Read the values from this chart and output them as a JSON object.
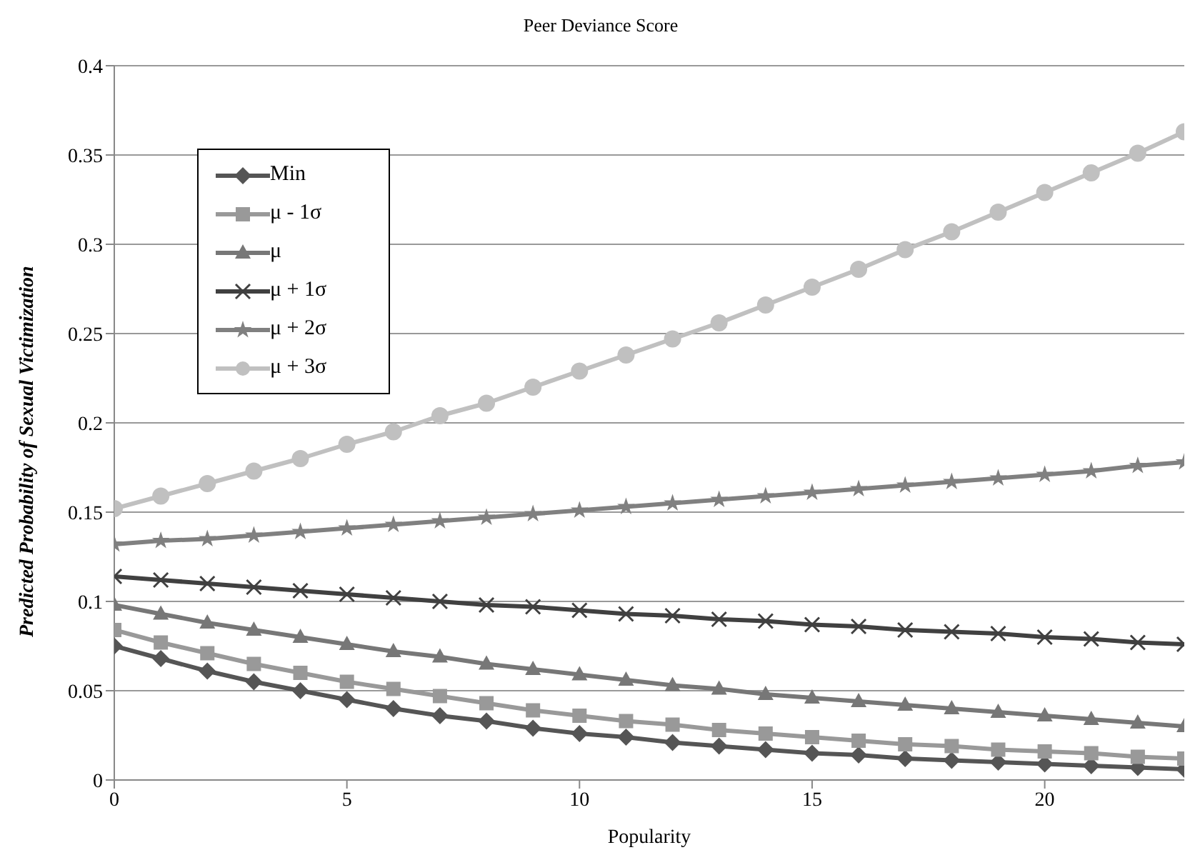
{
  "chart_data": {
    "type": "line",
    "title": "Peer Deviance Score",
    "xlabel": "Popularity",
    "ylabel": "Predicted Probability of Sexual Victimization",
    "x": [
      0,
      1,
      2,
      3,
      4,
      5,
      6,
      7,
      8,
      9,
      10,
      11,
      12,
      13,
      14,
      15,
      16,
      17,
      18,
      19,
      20,
      21,
      22,
      23
    ],
    "series": [
      {
        "name": "Min",
        "color": "#555555",
        "marker": "diamond",
        "values": [
          0.075,
          0.068,
          0.061,
          0.055,
          0.05,
          0.045,
          0.04,
          0.036,
          0.033,
          0.029,
          0.026,
          0.024,
          0.021,
          0.019,
          0.017,
          0.015,
          0.014,
          0.012,
          0.011,
          0.01,
          0.009,
          0.008,
          0.007,
          0.006
        ]
      },
      {
        "name": "μ - 1σ",
        "color": "#999999",
        "marker": "square",
        "values": [
          0.084,
          0.077,
          0.071,
          0.065,
          0.06,
          0.055,
          0.051,
          0.047,
          0.043,
          0.039,
          0.036,
          0.033,
          0.031,
          0.028,
          0.026,
          0.024,
          0.022,
          0.02,
          0.019,
          0.017,
          0.016,
          0.015,
          0.013,
          0.012
        ]
      },
      {
        "name": "μ",
        "color": "#777777",
        "marker": "triangle",
        "values": [
          0.098,
          0.093,
          0.088,
          0.084,
          0.08,
          0.076,
          0.072,
          0.069,
          0.065,
          0.062,
          0.059,
          0.056,
          0.053,
          0.051,
          0.048,
          0.046,
          0.044,
          0.042,
          0.04,
          0.038,
          0.036,
          0.034,
          0.032,
          0.03
        ]
      },
      {
        "name": "μ + 1σ",
        "color": "#404040",
        "marker": "cross",
        "values": [
          0.114,
          0.112,
          0.11,
          0.108,
          0.106,
          0.104,
          0.102,
          0.1,
          0.098,
          0.097,
          0.095,
          0.093,
          0.092,
          0.09,
          0.089,
          0.087,
          0.086,
          0.084,
          0.083,
          0.082,
          0.08,
          0.079,
          0.077,
          0.076
        ]
      },
      {
        "name": "μ + 2σ",
        "color": "#808080",
        "marker": "star",
        "values": [
          0.132,
          0.134,
          0.135,
          0.137,
          0.139,
          0.141,
          0.143,
          0.145,
          0.147,
          0.149,
          0.151,
          0.153,
          0.155,
          0.157,
          0.159,
          0.161,
          0.163,
          0.165,
          0.167,
          0.169,
          0.171,
          0.173,
          0.176,
          0.178
        ]
      },
      {
        "name": "μ + 3σ",
        "color": "#c0c0c0",
        "marker": "circle",
        "values": [
          0.152,
          0.159,
          0.166,
          0.173,
          0.18,
          0.188,
          0.195,
          0.204,
          0.211,
          0.22,
          0.229,
          0.238,
          0.247,
          0.256,
          0.266,
          0.276,
          0.286,
          0.297,
          0.307,
          0.318,
          0.329,
          0.34,
          0.351,
          0.363
        ]
      }
    ],
    "xlim": [
      0,
      23
    ],
    "xticks": [
      0,
      5,
      10,
      15,
      20
    ],
    "ylim": [
      0,
      0.4
    ],
    "yticks": [
      0,
      0.05,
      0.1,
      0.15,
      0.2,
      0.25,
      0.3,
      0.35,
      0.4
    ],
    "grid": "y",
    "legend": "top left",
    "line_style": "solid"
  }
}
